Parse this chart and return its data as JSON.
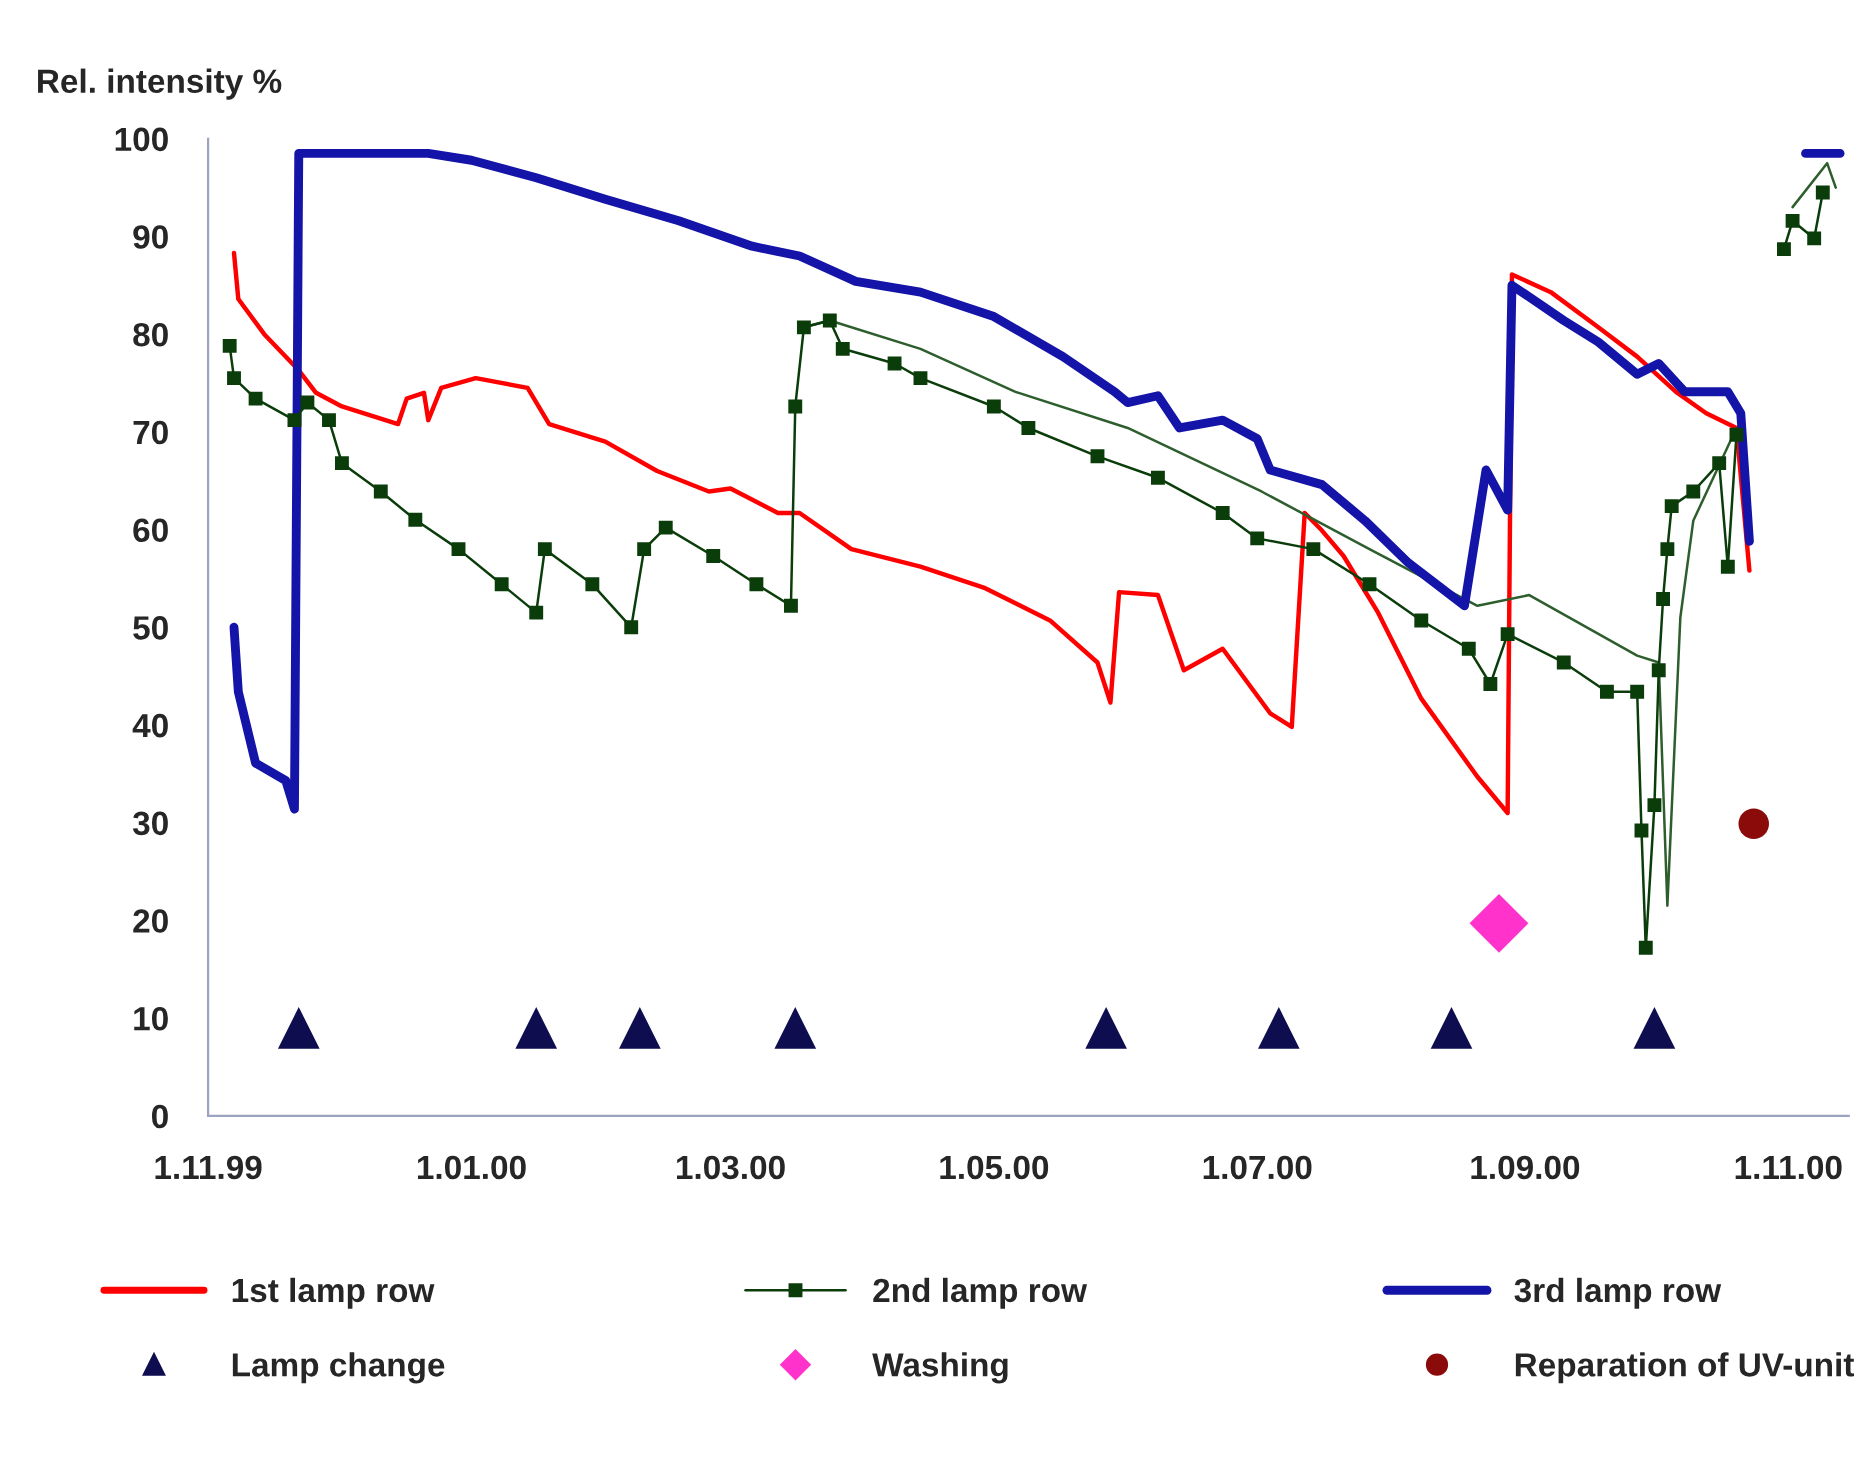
{
  "chart_data": {
    "type": "line",
    "ylabel": "Rel. intensity %",
    "xlim": [
      "1999-11-01",
      "2000-11-15"
    ],
    "xticks": [
      {
        "value": "1999-11-01",
        "label": "1.11.99"
      },
      {
        "value": "2000-01-01",
        "label": "1.01.00"
      },
      {
        "value": "2000-03-01",
        "label": "1.03.00"
      },
      {
        "value": "2000-05-01",
        "label": "1.05.00"
      },
      {
        "value": "2000-07-01",
        "label": "1.07.00"
      },
      {
        "value": "2000-09-01",
        "label": "1.09.00"
      },
      {
        "value": "2000-11-01",
        "label": "1.11.00"
      }
    ],
    "ylim": [
      0,
      100
    ],
    "yticks": [
      0,
      10,
      20,
      30,
      40,
      50,
      60,
      70,
      80,
      90,
      100
    ],
    "grid": false,
    "legend": "bottom",
    "series": [
      {
        "name": "1st lamp row",
        "color": "#ff0000",
        "marker": "none",
        "x": [
          "1999-11-07",
          "1999-11-08",
          "1999-11-14",
          "1999-11-22",
          "1999-11-26",
          "1999-12-02",
          "1999-12-15",
          "1999-12-17",
          "1999-12-21",
          "1999-12-22",
          "1999-12-25",
          "2000-01-02",
          "2000-01-14",
          "2000-01-19",
          "2000-02-01",
          "2000-02-13",
          "2000-02-25",
          "2000-03-01",
          "2000-03-12",
          "2000-03-17",
          "2000-03-29",
          "2000-04-14",
          "2000-04-29",
          "2000-05-14",
          "2000-05-25",
          "2000-05-28",
          "2000-05-30",
          "2000-06-08",
          "2000-06-14",
          "2000-06-23",
          "2000-07-04",
          "2000-07-09",
          "2000-07-12",
          "2000-07-16",
          "2000-07-21",
          "2000-07-29",
          "2000-08-08",
          "2000-08-21",
          "2000-08-28",
          "2000-08-29",
          "2000-09-07",
          "2000-09-18",
          "2000-09-27",
          "2000-10-06",
          "2000-10-13",
          "2000-10-20",
          "2000-10-23"
        ],
        "values": [
          88.3,
          83.6,
          80,
          76.3,
          74,
          72.6,
          70.8,
          73.4,
          74,
          71.2,
          74.5,
          75.5,
          74.5,
          70.8,
          69,
          66,
          63.9,
          64.2,
          61.7,
          61.7,
          58,
          56.2,
          54,
          50.7,
          46.4,
          42.3,
          53.6,
          53.3,
          45.6,
          47.8,
          41.2,
          39.8,
          61.7,
          59.9,
          57.3,
          51.5,
          42.7,
          34.7,
          31,
          86.1,
          84.3,
          80.7,
          77.7,
          74.1,
          71.9,
          70.4,
          55.8
        ]
      },
      {
        "name": "2nd lamp row",
        "color": "#0b3d0b",
        "marker": "square",
        "x": [
          "1999-11-06",
          "1999-11-07",
          "1999-11-12",
          "1999-11-21",
          "1999-11-24",
          "1999-11-29",
          "1999-12-02",
          "1999-12-11",
          "1999-12-19",
          "1999-12-29",
          "2000-01-08",
          "2000-01-16",
          "2000-01-18",
          "2000-01-29",
          "2000-02-07",
          "2000-02-10",
          "2000-02-15",
          "2000-02-26",
          "2000-03-07",
          "2000-03-15",
          "2000-03-16",
          "2000-03-18",
          "2000-03-24",
          "2000-03-27",
          "2000-04-08",
          "2000-04-14",
          "2000-05-01",
          "2000-05-09",
          "2000-05-25",
          "2000-06-08",
          "2000-06-23",
          "2000-07-01",
          "2000-07-14",
          "2000-07-27",
          "2000-08-08",
          "2000-08-19",
          "2000-08-24",
          "2000-08-28",
          "2000-09-10",
          "2000-09-20",
          "2000-09-27",
          "2000-09-28",
          "2000-09-29",
          "2000-10-01",
          "2000-10-02",
          "2000-10-03",
          "2000-10-04",
          "2000-10-05",
          "2000-10-10",
          "2000-10-16",
          "2000-10-18",
          "2000-10-20",
          "2000-10-27",
          "2000-10-31",
          "2000-11-02",
          "2000-11-07",
          "2000-11-09"
        ],
        "values": [
          78.8,
          75.5,
          73.4,
          71.2,
          73,
          71.2,
          66.8,
          63.9,
          61,
          58,
          54.4,
          51.5,
          58,
          54.4,
          50,
          58,
          60.2,
          57.3,
          54.4,
          52.2,
          72.6,
          80.7,
          81.4,
          78.5,
          77,
          75.5,
          72.6,
          70.4,
          67.5,
          65.3,
          61.7,
          59.1,
          58,
          54.4,
          50.7,
          47.8,
          44.2,
          49.3,
          46.4,
          43.4,
          43.4,
          29.2,
          17.2,
          31.8,
          45.6,
          52.9,
          58,
          62.4,
          63.9,
          66.8,
          56.2,
          69.7,
          null,
          88.7,
          91.6,
          89.8,
          94.5
        ]
      },
      {
        "color": "#2e5e2e",
        "marker": "none",
        "x": [
          "2000-03-18",
          "2000-03-24",
          "2000-04-14",
          "2000-05-06",
          "2000-06-01",
          "2000-07-02",
          "2000-07-27",
          "2000-08-21",
          "2000-09-02",
          "2000-09-27",
          "2000-10-02",
          "2000-10-04",
          "2000-10-07",
          "2000-10-10",
          "2000-10-20",
          "2000-10-27",
          "2000-11-02",
          "2000-11-10",
          "2000-11-12"
        ],
        "values": [
          80.7,
          81.4,
          78.5,
          74.1,
          70.4,
          63.9,
          58,
          52.2,
          53.3,
          47.1,
          46.4,
          21.5,
          51,
          60.9,
          70.4,
          null,
          93,
          97.5,
          95
        ]
      },
      {
        "name": "3rd lamp row",
        "color": "#1414a8",
        "marker": "none",
        "x": [
          "1999-11-07",
          "1999-11-08",
          "1999-11-12",
          "1999-11-19",
          "1999-11-21",
          "1999-11-22",
          "1999-12-22",
          "2000-01-01",
          "2000-01-16",
          "2000-02-01",
          "2000-02-18",
          "2000-03-06",
          "2000-03-17",
          "2000-03-30",
          "2000-04-14",
          "2000-05-01",
          "2000-05-17",
          "2000-05-29",
          "2000-06-01",
          "2000-06-08",
          "2000-06-13",
          "2000-06-23",
          "2000-07-01",
          "2000-07-04",
          "2000-07-16",
          "2000-07-26",
          "2000-08-05",
          "2000-08-18",
          "2000-08-23",
          "2000-08-28",
          "2000-08-29",
          "2000-09-10",
          "2000-09-18",
          "2000-09-27",
          "2000-10-02",
          "2000-10-08",
          "2000-10-18",
          "2000-10-21",
          "2000-10-23",
          "2000-10-28",
          "2000-11-05",
          "2000-11-13"
        ],
        "values": [
          50,
          43.4,
          36.1,
          34.3,
          31.4,
          98.5,
          98.5,
          97.8,
          96,
          93.8,
          91.6,
          89,
          88,
          85.4,
          84.3,
          81.8,
          77.7,
          74.1,
          73,
          73.7,
          70.4,
          71.2,
          69.3,
          66.1,
          64.6,
          60.9,
          56.6,
          52.2,
          66.1,
          62,
          85,
          81.4,
          79.2,
          75.9,
          77,
          74.1,
          74.1,
          71.9,
          58.8,
          null,
          98.5,
          98.5
        ]
      },
      {
        "name": "Lamp change",
        "type": "scatter",
        "color": "#0d0d4f",
        "marker": "triangle",
        "x": [
          "1999-11-22",
          "2000-01-16",
          "2000-02-09",
          "2000-03-16",
          "2000-05-27",
          "2000-07-06",
          "2000-08-15",
          "2000-10-01"
        ],
        "values": [
          9,
          9,
          9,
          9,
          9,
          9,
          9,
          9
        ]
      },
      {
        "name": "Washing",
        "type": "scatter",
        "color": "#ff33cc",
        "marker": "diamond",
        "x": [
          "2000-08-26"
        ],
        "values": [
          19.7
        ]
      },
      {
        "name": "Reparation of UV-unit",
        "type": "scatter",
        "color": "#8b0a0a",
        "marker": "circle",
        "x": [
          "2000-10-24"
        ],
        "values": [
          29.9
        ]
      }
    ]
  }
}
